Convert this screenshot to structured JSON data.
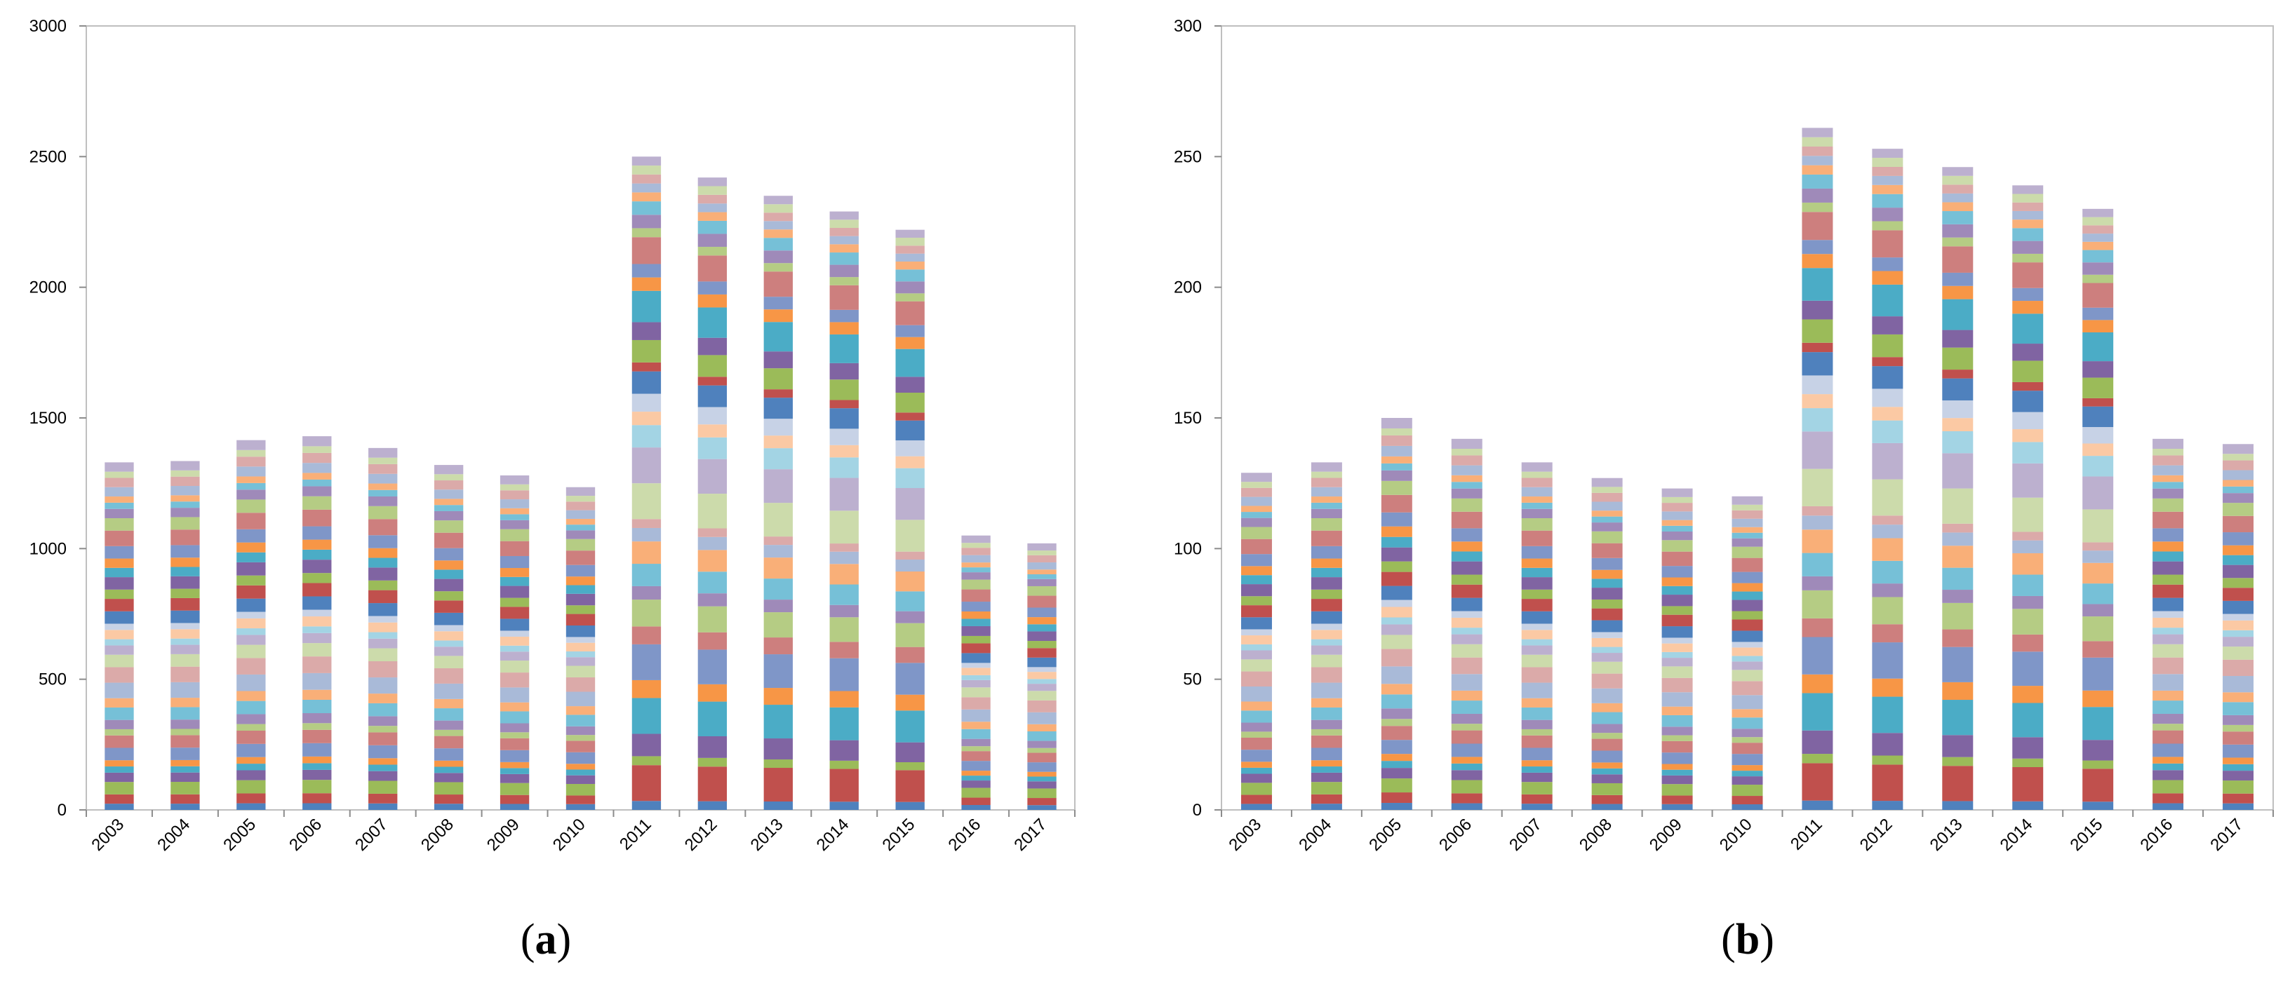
{
  "figure": {
    "panels": [
      {
        "label_open": "(",
        "label_letter": "a",
        "label_close": ")"
      },
      {
        "label_open": "(",
        "label_letter": "b",
        "label_close": ")"
      }
    ]
  },
  "palette": [
    "#4f81bd",
    "#c0504d",
    "#9bbb59",
    "#8064a2",
    "#4bacc6",
    "#f79646",
    "#7f96c8",
    "#cd7f7e",
    "#b5cc84",
    "#9f8ab9",
    "#76c0d7",
    "#f9af78",
    "#a9bad8",
    "#dbaaa9",
    "#ccdbab",
    "#bcb0cf",
    "#a3d4e4",
    "#fbc9a4",
    "#c7d2e6"
  ],
  "chart_data": [
    {
      "type": "bar",
      "stacked": true,
      "panel": "a",
      "title": "",
      "xlabel": "",
      "ylabel": "",
      "categories": [
        "2003",
        "2004",
        "2005",
        "2006",
        "2007",
        "2008",
        "2009",
        "2010",
        "2011",
        "2012",
        "2013",
        "2014",
        "2015",
        "2016",
        "2017"
      ],
      "totals": [
        1330,
        1335,
        1415,
        1430,
        1385,
        1320,
        1280,
        1235,
        2500,
        2420,
        2350,
        2290,
        2220,
        1050,
        1020
      ],
      "ylim": [
        0,
        3000
      ],
      "yticks": [
        0,
        500,
        1000,
        1500,
        2000,
        2500,
        3000
      ],
      "segment_weights": [
        [
          2,
          3,
          4,
          3,
          2,
          2,
          4,
          4,
          2,
          3,
          4,
          3,
          5,
          5,
          4,
          3,
          2,
          3,
          2,
          4,
          4,
          3,
          4,
          3,
          3,
          4,
          5,
          4,
          3,
          2,
          2,
          3,
          3,
          2,
          3
        ],
        [
          2,
          3,
          4,
          3,
          2,
          2,
          4,
          4,
          2,
          3,
          4,
          3,
          5,
          5,
          4,
          3,
          2,
          3,
          2,
          4,
          4,
          3,
          4,
          3,
          3,
          4,
          5,
          4,
          3,
          2,
          2,
          3,
          3,
          2,
          3
        ],
        [
          2,
          3,
          4,
          3,
          2,
          2,
          4,
          4,
          2,
          3,
          4,
          3,
          5,
          5,
          4,
          3,
          2,
          3,
          2,
          4,
          4,
          3,
          4,
          3,
          3,
          4,
          5,
          4,
          3,
          2,
          2,
          3,
          3,
          2,
          3
        ],
        [
          2,
          3,
          4,
          3,
          2,
          2,
          4,
          4,
          2,
          3,
          4,
          3,
          5,
          5,
          4,
          3,
          2,
          3,
          2,
          4,
          4,
          3,
          4,
          3,
          3,
          4,
          5,
          4,
          3,
          2,
          2,
          3,
          3,
          2,
          3
        ],
        [
          2,
          3,
          4,
          3,
          2,
          2,
          4,
          4,
          2,
          3,
          4,
          3,
          5,
          5,
          4,
          3,
          2,
          3,
          2,
          4,
          4,
          3,
          4,
          3,
          3,
          4,
          5,
          4,
          3,
          2,
          2,
          3,
          3,
          2,
          3
        ],
        [
          2,
          3,
          4,
          3,
          2,
          2,
          4,
          4,
          2,
          3,
          4,
          3,
          5,
          5,
          4,
          3,
          2,
          3,
          2,
          4,
          4,
          3,
          4,
          3,
          3,
          4,
          5,
          4,
          3,
          2,
          2,
          3,
          3,
          2,
          3
        ],
        [
          2,
          3,
          4,
          3,
          2,
          2,
          4,
          4,
          2,
          3,
          4,
          3,
          5,
          5,
          4,
          3,
          2,
          3,
          2,
          4,
          4,
          3,
          4,
          3,
          3,
          4,
          5,
          4,
          3,
          2,
          2,
          3,
          3,
          2,
          3
        ],
        [
          2,
          3,
          4,
          3,
          2,
          2,
          4,
          4,
          2,
          3,
          4,
          3,
          5,
          5,
          4,
          3,
          2,
          3,
          2,
          4,
          4,
          3,
          4,
          3,
          3,
          4,
          5,
          4,
          3,
          2,
          2,
          3,
          3,
          2,
          3
        ],
        [
          2,
          8,
          2,
          5,
          8,
          4,
          8,
          4,
          6,
          3,
          5,
          5,
          3,
          2,
          8,
          8,
          5,
          3,
          4,
          5,
          2,
          5,
          4,
          7,
          3,
          3,
          6,
          2,
          3,
          3,
          2,
          2,
          2,
          2,
          2
        ],
        [
          2,
          8,
          2,
          5,
          8,
          4,
          8,
          4,
          6,
          3,
          5,
          5,
          3,
          2,
          8,
          8,
          5,
          3,
          4,
          5,
          2,
          5,
          4,
          7,
          3,
          3,
          6,
          2,
          3,
          3,
          2,
          2,
          2,
          2,
          2
        ],
        [
          2,
          8,
          2,
          5,
          8,
          4,
          8,
          4,
          6,
          3,
          5,
          5,
          3,
          2,
          8,
          8,
          5,
          3,
          4,
          5,
          2,
          5,
          4,
          7,
          3,
          3,
          6,
          2,
          3,
          3,
          2,
          2,
          2,
          2,
          2
        ],
        [
          2,
          8,
          2,
          5,
          8,
          4,
          8,
          4,
          6,
          3,
          5,
          5,
          3,
          2,
          8,
          8,
          5,
          3,
          4,
          5,
          2,
          5,
          4,
          7,
          3,
          3,
          6,
          2,
          3,
          3,
          2,
          2,
          2,
          2,
          2
        ],
        [
          2,
          8,
          2,
          5,
          8,
          4,
          8,
          4,
          6,
          3,
          5,
          5,
          3,
          2,
          8,
          8,
          5,
          3,
          4,
          5,
          2,
          5,
          4,
          7,
          3,
          3,
          6,
          2,
          3,
          3,
          2,
          2,
          2,
          2,
          2
        ],
        [
          2,
          3,
          4,
          3,
          2,
          2,
          4,
          4,
          2,
          3,
          4,
          3,
          5,
          5,
          4,
          3,
          2,
          3,
          2,
          4,
          4,
          3,
          4,
          3,
          3,
          4,
          5,
          4,
          3,
          2,
          2,
          3,
          3,
          2,
          3
        ],
        [
          2,
          3,
          4,
          3,
          2,
          2,
          4,
          4,
          2,
          3,
          4,
          3,
          5,
          5,
          4,
          3,
          2,
          3,
          2,
          4,
          4,
          3,
          4,
          3,
          3,
          4,
          5,
          4,
          3,
          2,
          2,
          3,
          3,
          2,
          3
        ]
      ]
    },
    {
      "type": "bar",
      "stacked": true,
      "panel": "b",
      "title": "",
      "xlabel": "",
      "ylabel": "",
      "categories": [
        "2003",
        "2004",
        "2005",
        "2006",
        "2007",
        "2008",
        "2009",
        "2010",
        "2011",
        "2012",
        "2013",
        "2014",
        "2015",
        "2016",
        "2017"
      ],
      "totals": [
        129,
        133,
        150,
        142,
        133,
        127,
        123,
        120,
        261,
        253,
        246,
        239,
        230,
        142,
        140
      ],
      "ylim": [
        0,
        300
      ],
      "yticks": [
        0,
        50,
        100,
        150,
        200,
        250,
        300
      ],
      "segment_weights": [
        [
          2,
          3,
          4,
          3,
          2,
          2,
          4,
          4,
          2,
          3,
          4,
          3,
          5,
          5,
          4,
          3,
          2,
          3,
          2,
          4,
          4,
          3,
          4,
          3,
          3,
          4,
          5,
          4,
          3,
          2,
          2,
          3,
          3,
          2,
          3
        ],
        [
          2,
          3,
          4,
          3,
          2,
          2,
          4,
          4,
          2,
          3,
          4,
          3,
          5,
          5,
          4,
          3,
          2,
          3,
          2,
          4,
          4,
          3,
          4,
          3,
          3,
          4,
          5,
          4,
          3,
          2,
          2,
          3,
          3,
          2,
          3
        ],
        [
          2,
          3,
          4,
          3,
          2,
          2,
          4,
          4,
          2,
          3,
          4,
          3,
          5,
          5,
          4,
          3,
          2,
          3,
          2,
          4,
          4,
          3,
          4,
          3,
          3,
          4,
          5,
          4,
          3,
          2,
          2,
          3,
          3,
          2,
          3
        ],
        [
          2,
          3,
          4,
          3,
          2,
          2,
          4,
          4,
          2,
          3,
          4,
          3,
          5,
          5,
          4,
          3,
          2,
          3,
          2,
          4,
          4,
          3,
          4,
          3,
          3,
          4,
          5,
          4,
          3,
          2,
          2,
          3,
          3,
          2,
          3
        ],
        [
          2,
          3,
          4,
          3,
          2,
          2,
          4,
          4,
          2,
          3,
          4,
          3,
          5,
          5,
          4,
          3,
          2,
          3,
          2,
          4,
          4,
          3,
          4,
          3,
          3,
          4,
          5,
          4,
          3,
          2,
          2,
          3,
          3,
          2,
          3
        ],
        [
          2,
          3,
          4,
          3,
          2,
          2,
          4,
          4,
          2,
          3,
          4,
          3,
          5,
          5,
          4,
          3,
          2,
          3,
          2,
          4,
          4,
          3,
          4,
          3,
          3,
          4,
          5,
          4,
          3,
          2,
          2,
          3,
          3,
          2,
          3
        ],
        [
          2,
          3,
          4,
          3,
          2,
          2,
          4,
          4,
          2,
          3,
          4,
          3,
          5,
          5,
          4,
          3,
          2,
          3,
          2,
          4,
          4,
          3,
          4,
          3,
          3,
          4,
          5,
          4,
          3,
          2,
          2,
          3,
          3,
          2,
          3
        ],
        [
          2,
          3,
          4,
          3,
          2,
          2,
          4,
          4,
          2,
          3,
          4,
          3,
          5,
          5,
          4,
          3,
          2,
          3,
          2,
          4,
          4,
          3,
          4,
          3,
          3,
          4,
          5,
          4,
          3,
          2,
          2,
          3,
          3,
          2,
          3
        ],
        [
          2,
          8,
          2,
          5,
          8,
          4,
          8,
          4,
          6,
          3,
          5,
          5,
          3,
          2,
          8,
          8,
          5,
          3,
          4,
          5,
          2,
          5,
          4,
          7,
          3,
          3,
          6,
          2,
          3,
          3,
          2,
          2,
          2,
          2,
          2
        ],
        [
          2,
          8,
          2,
          5,
          8,
          4,
          8,
          4,
          6,
          3,
          5,
          5,
          3,
          2,
          8,
          8,
          5,
          3,
          4,
          5,
          2,
          5,
          4,
          7,
          3,
          3,
          6,
          2,
          3,
          3,
          2,
          2,
          2,
          2,
          2
        ],
        [
          2,
          8,
          2,
          5,
          8,
          4,
          8,
          4,
          6,
          3,
          5,
          5,
          3,
          2,
          8,
          8,
          5,
          3,
          4,
          5,
          2,
          5,
          4,
          7,
          3,
          3,
          6,
          2,
          3,
          3,
          2,
          2,
          2,
          2,
          2
        ],
        [
          2,
          8,
          2,
          5,
          8,
          4,
          8,
          4,
          6,
          3,
          5,
          5,
          3,
          2,
          8,
          8,
          5,
          3,
          4,
          5,
          2,
          5,
          4,
          7,
          3,
          3,
          6,
          2,
          3,
          3,
          2,
          2,
          2,
          2,
          2
        ],
        [
          2,
          8,
          2,
          5,
          8,
          4,
          8,
          4,
          6,
          3,
          5,
          5,
          3,
          2,
          8,
          8,
          5,
          3,
          4,
          5,
          2,
          5,
          4,
          7,
          3,
          3,
          6,
          2,
          3,
          3,
          2,
          2,
          2,
          2,
          2
        ],
        [
          2,
          3,
          4,
          3,
          2,
          2,
          4,
          4,
          2,
          3,
          4,
          3,
          5,
          5,
          4,
          3,
          2,
          3,
          2,
          4,
          4,
          3,
          4,
          3,
          3,
          4,
          5,
          4,
          3,
          2,
          2,
          3,
          3,
          2,
          3
        ],
        [
          2,
          3,
          4,
          3,
          2,
          2,
          4,
          4,
          2,
          3,
          4,
          3,
          5,
          5,
          4,
          3,
          2,
          3,
          2,
          4,
          4,
          3,
          4,
          3,
          3,
          4,
          5,
          4,
          3,
          2,
          2,
          3,
          3,
          2,
          3
        ]
      ]
    }
  ]
}
